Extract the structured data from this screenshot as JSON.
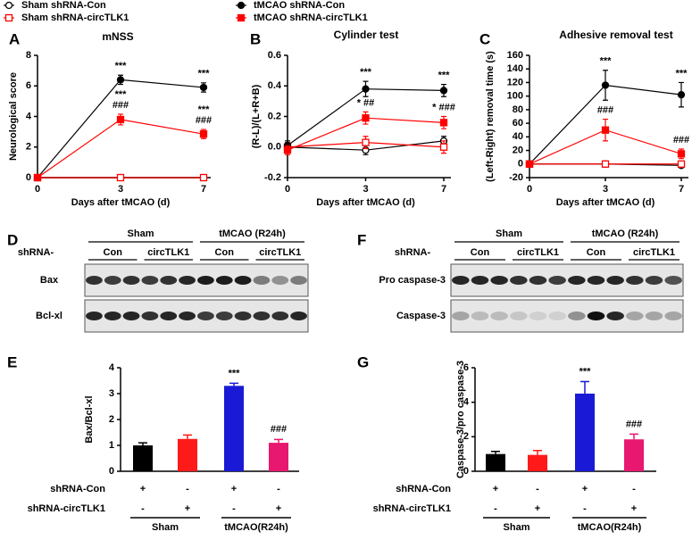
{
  "chart_data": [
    {
      "type": "line",
      "panel": "A",
      "title": "mNSS",
      "ylabel": "Neurological score",
      "xlabel": "Days after tMCAO (d)",
      "categories": [
        "0",
        "3",
        "7"
      ],
      "ylim": [
        0,
        8
      ],
      "yticks": [
        0,
        2,
        4,
        6,
        8
      ],
      "legend": true,
      "series": [
        {
          "name": "Sham shRNA-Con",
          "color": "#000000",
          "marker": "open-circle",
          "values": [
            0,
            0,
            0
          ],
          "errors": [
            0,
            0,
            0
          ]
        },
        {
          "name": "Sham shRNA-circTLK1",
          "color": "#ff0000",
          "marker": "open-square",
          "values": [
            0,
            0,
            0
          ],
          "errors": [
            0,
            0,
            0
          ]
        },
        {
          "name": "tMCAO shRNA-Con",
          "color": "#000000",
          "marker": "circle",
          "values": [
            0,
            6.4,
            5.9
          ],
          "errors": [
            0,
            0.3,
            0.3
          ]
        },
        {
          "name": "tMCAO shRNA-circTLK1",
          "color": "#ff0000",
          "marker": "square",
          "values": [
            0,
            3.8,
            2.85
          ],
          "errors": [
            0,
            0.35,
            0.3
          ]
        }
      ],
      "annotations": [
        {
          "series": 2,
          "index": 1,
          "text": "***"
        },
        {
          "series": 2,
          "index": 2,
          "text": "***"
        },
        {
          "series": 3,
          "index": 1,
          "text": "###"
        },
        {
          "series": 3,
          "index": 1,
          "text": "***"
        },
        {
          "series": 3,
          "index": 2,
          "text": "###"
        },
        {
          "series": 3,
          "index": 2,
          "text": "***"
        }
      ]
    },
    {
      "type": "line",
      "panel": "B",
      "title": "Cylinder test",
      "ylabel": "(R-L)/(L+R+B)",
      "xlabel": "Days after tMCAO (d)",
      "categories": [
        "0",
        "3",
        "7"
      ],
      "ylim": [
        -0.2,
        0.6
      ],
      "yticks": [
        -0.2,
        {
          "value": 0,
          "label": "0.0"
        },
        0.2,
        0.4,
        0.6
      ],
      "series": [
        {
          "color": "#000000",
          "marker": "open-circle",
          "values": [
            0,
            -0.02,
            0.04
          ],
          "errors": [
            0.03,
            0.03,
            0.03
          ]
        },
        {
          "color": "#ff0000",
          "marker": "open-square",
          "values": [
            0,
            0.03,
            0.0
          ],
          "errors": [
            0.03,
            0.04,
            0.04
          ]
        },
        {
          "color": "#000000",
          "marker": "circle",
          "values": [
            0.01,
            0.38,
            0.37
          ],
          "errors": [
            0.03,
            0.05,
            0.04
          ]
        },
        {
          "color": "#ff0000",
          "marker": "square",
          "values": [
            -0.02,
            0.19,
            0.16
          ],
          "errors": [
            0.03,
            0.04,
            0.04
          ]
        }
      ],
      "annotations": [
        {
          "series": 2,
          "index": 1,
          "text": "***"
        },
        {
          "series": 2,
          "index": 2,
          "text": "***"
        },
        {
          "series": 3,
          "index": 1,
          "text": "* ##"
        },
        {
          "series": 3,
          "index": 2,
          "text": "* ###"
        }
      ]
    },
    {
      "type": "line",
      "panel": "C",
      "title": "Adhesive removal test",
      "ylabel": "(Left-Right) removal time (s)",
      "xlabel": "Days after tMCAO (d)",
      "categories": [
        "0",
        "3",
        "7"
      ],
      "ylim": [
        -20,
        160
      ],
      "yticks": [
        -20,
        0,
        20,
        40,
        60,
        80,
        100,
        120,
        140,
        160
      ],
      "series": [
        {
          "color": "#000000",
          "marker": "open-circle",
          "values": [
            0,
            0,
            -2
          ],
          "errors": [
            1,
            2,
            2
          ]
        },
        {
          "color": "#ff0000",
          "marker": "open-square",
          "values": [
            0,
            0,
            0
          ],
          "errors": [
            1,
            2,
            2
          ]
        },
        {
          "color": "#000000",
          "marker": "circle",
          "values": [
            0,
            116,
            102
          ],
          "errors": [
            2,
            22,
            18
          ]
        },
        {
          "color": "#ff0000",
          "marker": "square",
          "values": [
            0,
            50,
            15
          ],
          "errors": [
            2,
            16,
            7
          ]
        }
      ],
      "annotations": [
        {
          "series": 2,
          "index": 1,
          "text": "***"
        },
        {
          "series": 2,
          "index": 2,
          "text": "***"
        },
        {
          "series": 3,
          "index": 1,
          "text": "###"
        },
        {
          "series": 3,
          "index": 2,
          "text": "###"
        }
      ]
    },
    {
      "type": "bar",
      "panel": "E",
      "ylabel": "Bax/Bcl-xl",
      "ylim": [
        0,
        4
      ],
      "yticks": [
        0,
        1,
        2,
        3,
        4
      ],
      "values": [
        1.0,
        1.25,
        3.3,
        1.1
      ],
      "errors": [
        0.1,
        0.15,
        0.1,
        0.13
      ],
      "colors": [
        "#000000",
        "#ff1a1a",
        "#1a1ad6",
        "#e8176f"
      ],
      "annotations": [
        {
          "index": 2,
          "text": "***"
        },
        {
          "index": 3,
          "text": "###"
        }
      ],
      "conditions": [
        {
          "label": "shRNA-Con",
          "marks": [
            "+",
            "-",
            "+",
            "-"
          ]
        },
        {
          "label": "shRNA-circTLK1",
          "marks": [
            "-",
            "+",
            "-",
            "+"
          ]
        }
      ],
      "groups": [
        "Sham",
        "tMCAO(R24h)"
      ]
    },
    {
      "type": "bar",
      "panel": "G",
      "ylabel": "Caspase-3/pro caspase-3",
      "ylim": [
        0,
        6
      ],
      "yticks": [
        0,
        2,
        4,
        6
      ],
      "values": [
        1.0,
        0.95,
        4.5,
        1.85
      ],
      "errors": [
        0.15,
        0.25,
        0.7,
        0.3
      ],
      "colors": [
        "#000000",
        "#ff1a1a",
        "#1a1ad6",
        "#e8176f"
      ],
      "annotations": [
        {
          "index": 2,
          "text": "***"
        },
        {
          "index": 3,
          "text": "###"
        }
      ],
      "conditions": [
        {
          "label": "shRNA-Con",
          "marks": [
            "+",
            "-",
            "+",
            "-"
          ]
        },
        {
          "label": "shRNA-circTLK1",
          "marks": [
            "-",
            "+",
            "-",
            "+"
          ]
        }
      ],
      "groups": [
        "Sham",
        "tMCAO(R24h)"
      ]
    }
  ],
  "blots": [
    {
      "panel": "D",
      "groups": [
        "Sham",
        "tMCAO (R24h)"
      ],
      "row_label": "shRNA-",
      "lanes": [
        "Con",
        "circTLK1",
        "Con",
        "circTLK1"
      ],
      "bands": [
        "Bax",
        "Bcl-xl"
      ]
    },
    {
      "panel": "F",
      "groups": [
        "Sham",
        "tMCAO (R24h)"
      ],
      "row_label": "shRNA-",
      "lanes": [
        "Con",
        "circTLK1",
        "Con",
        "circTLK1"
      ],
      "bands": [
        "Pro caspase-3",
        "Caspase-3"
      ]
    }
  ]
}
